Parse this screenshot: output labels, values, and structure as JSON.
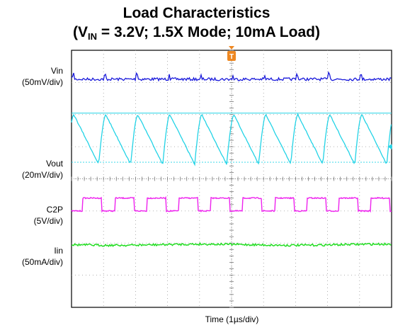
{
  "title": {
    "line1": "Load Characteristics",
    "line2_pre": "(V",
    "line2_sub": "IN",
    "line2_post": " = 3.2V; 1.5X Mode; 10mA Load)"
  },
  "chart_data": {
    "type": "line",
    "title": "Load Characteristics (VIN = 3.2V; 1.5X Mode; 10mA Load)",
    "xlabel": "Time (1µs/div)",
    "x_divisions": 10,
    "y_divisions": 8,
    "grid": true,
    "trigger_marker": "T",
    "series": [
      {
        "name": "Vin",
        "label_line1": "Vin",
        "label_line2": "(50mV/div)",
        "color": "#1a1adb",
        "shape": "noisy-flat-with-periodic-spikes",
        "level_div": 7.1,
        "period_div": 1.0
      },
      {
        "name": "Vout",
        "label_line1": "Vout",
        "label_line2": "(20mV/div)",
        "color": "#22d3e6",
        "shape": "sawtooth",
        "top_div": 6.0,
        "bottom_div": 4.45,
        "period_div": 1.0
      },
      {
        "name": "C2P",
        "label_line1": "C2P",
        "label_line2": "(5V/div)",
        "color": "#ee22ee",
        "shape": "square",
        "high_div": 3.4,
        "low_div": 3.0,
        "period_div": 1.0,
        "duty": 0.6
      },
      {
        "name": "Iin",
        "label_line1": "Iin",
        "label_line2": "(50mA/div)",
        "color": "#22dd22",
        "shape": "noisy-flat",
        "level_div": 1.95
      }
    ]
  }
}
